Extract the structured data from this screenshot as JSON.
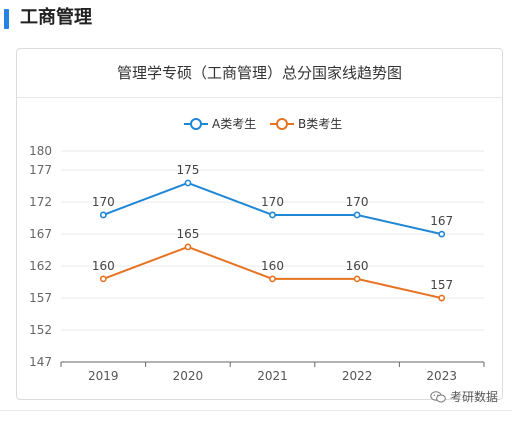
{
  "section": {
    "title": "工商管理"
  },
  "chart_data": {
    "type": "line",
    "title": "管理学专硕（工商管理）总分国家线趋势图",
    "categories": [
      "2019",
      "2020",
      "2021",
      "2022",
      "2023"
    ],
    "series": [
      {
        "name": "A类考生",
        "values": [
          170,
          175,
          170,
          170,
          167
        ],
        "color": "#1f87d6"
      },
      {
        "name": "B类考生",
        "values": [
          160,
          165,
          160,
          160,
          157
        ],
        "color": "#e67322"
      }
    ],
    "yticks": [
      147,
      152,
      157,
      162,
      167,
      172,
      177,
      180
    ],
    "ylim": [
      147,
      180
    ],
    "xlabel": "",
    "ylabel": "",
    "grid": true,
    "legend_position": "top-center"
  },
  "watermark": {
    "text": "考研数据",
    "icon": "wechat-icon"
  }
}
